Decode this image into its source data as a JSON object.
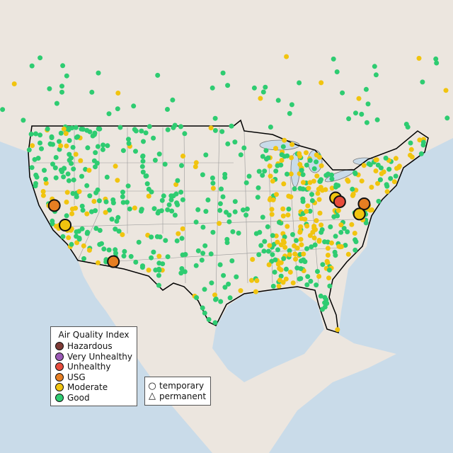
{
  "legend": {
    "title": "Air Quality Index",
    "categories": [
      {
        "label": "Hazardous",
        "color": "#7e3b36"
      },
      {
        "label": "Very Unhealthy",
        "color": "#9b59b6"
      },
      {
        "label": "Unhealthy",
        "color": "#e74c3c"
      },
      {
        "label": "USG",
        "color": "#e67e22"
      },
      {
        "label": "Moderate",
        "color": "#f1c40f"
      },
      {
        "label": "Good",
        "color": "#2ecc71"
      }
    ]
  },
  "monitor_types": [
    {
      "label": "temporary",
      "symbol": "○"
    },
    {
      "label": "permanent",
      "symbol": "△"
    }
  ],
  "highlighted_monitors": [
    {
      "lon": -121.7,
      "lat": 39.8,
      "category": "USG"
    },
    {
      "lon": -120.1,
      "lat": 37.5,
      "category": "Moderate"
    },
    {
      "lon": -113.0,
      "lat": 33.2,
      "category": "USG"
    },
    {
      "lon": -80.3,
      "lat": 40.7,
      "category": "Moderate"
    },
    {
      "lon": -79.7,
      "lat": 40.25,
      "category": "Unhealthy"
    },
    {
      "lon": -76.1,
      "lat": 40.0,
      "category": "USG"
    },
    {
      "lon": -76.8,
      "lat": 38.8,
      "category": "Moderate"
    }
  ]
}
